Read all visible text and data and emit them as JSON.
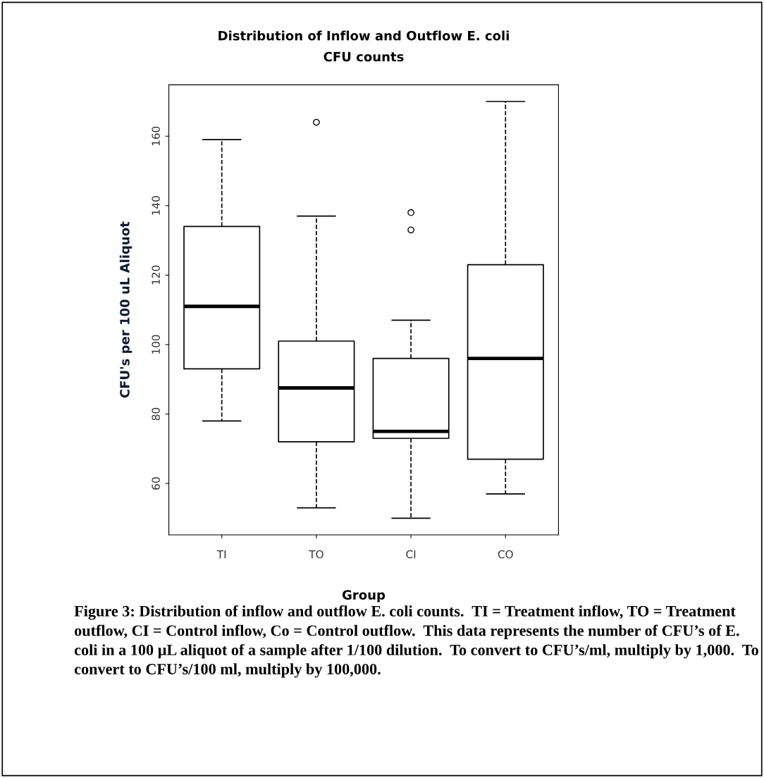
{
  "chart_data": {
    "type": "box",
    "title": "Distribution of Inflow and Outflow E. coli\nCFU counts",
    "xlabel": "Group",
    "ylabel": "CFU's per 100 uL Aliquot",
    "categories": [
      "TI",
      "TO",
      "CI",
      "CO"
    ],
    "boxes": [
      {
        "low": 78,
        "q1": 93,
        "median": 111,
        "q3": 134,
        "high": 159
      },
      {
        "low": 53,
        "q1": 72,
        "median": 87.5,
        "q3": 101,
        "high": 137,
        "outliers": [
          164
        ]
      },
      {
        "low": 50,
        "q1": 73,
        "median": 75,
        "q3": 96,
        "high": 107,
        "outliers": [
          133,
          138
        ]
      },
      {
        "low": 57,
        "q1": 67,
        "median": 96,
        "q3": 123,
        "high": 170
      }
    ],
    "ylim": [
      45.2,
      174.8
    ],
    "yticks": [
      60,
      80,
      100,
      120,
      140,
      160
    ],
    "grid": false,
    "legend": false,
    "annotations": [
      "Figure 3: Distribution of inflow and outflow E. coli counts.  TI = Treatment inflow, TO = Treatment outflow, CI = Control inflow, Co = Control outflow.  This data represents the number of CFU’s of E. coli in a 100 µL aliquot of a sample after 1/100 dilution.  To convert to CFU’s/ml, multiply by 1,000.  To convert to CFU’s/100 ml, multiply by 100,000."
    ]
  }
}
